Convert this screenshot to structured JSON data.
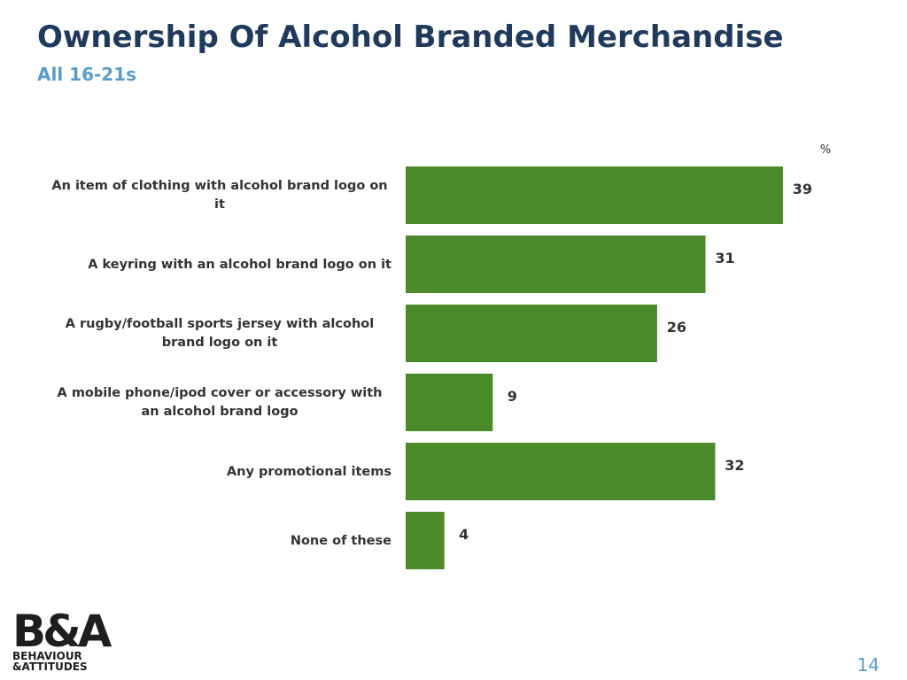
{
  "chart_data": {
    "type": "bar",
    "orientation": "horizontal",
    "title": "Ownership Of Alcohol Branded Merchandise",
    "subtitle": "All 16-21s",
    "unit_label": "%",
    "categories": [
      "An item of clothing with alcohol brand logo on it",
      "A keyring with an alcohol brand logo on it",
      "A rugby/football sports jersey with alcohol brand logo on it",
      "A mobile phone/ipod cover or accessory with an alcohol brand logo",
      "Any promotional items",
      "None of these"
    ],
    "values": [
      39,
      31,
      26,
      9,
      32,
      4
    ],
    "color": "#4b8a2a"
  },
  "footer": {
    "logo_mark": "B&A",
    "logo_line_1": "BEHAVIOUR",
    "logo_line_2": "&ATTITUDES",
    "page_number": "14"
  }
}
